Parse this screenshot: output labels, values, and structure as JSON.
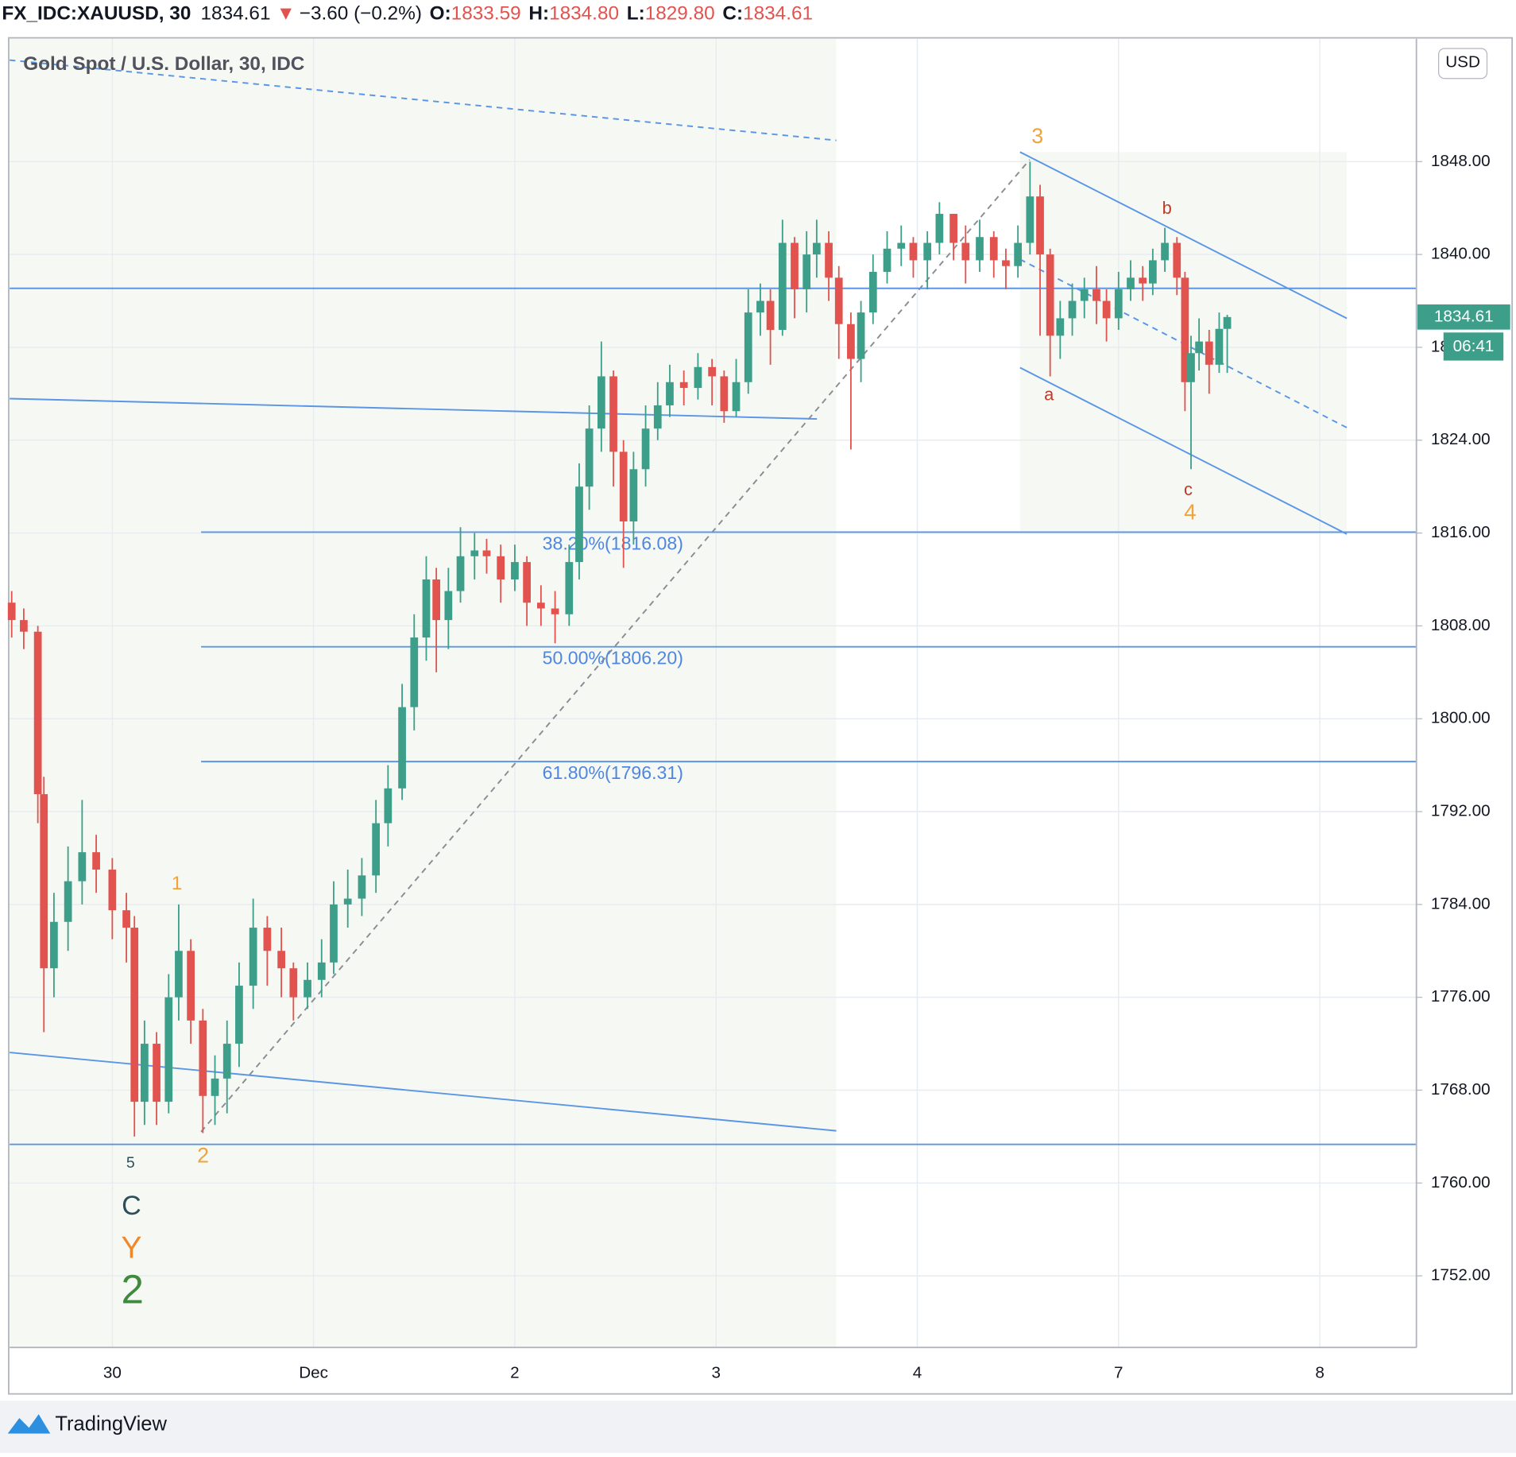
{
  "header": {
    "symbol": "FX_IDC:XAUUSD, 30",
    "last": "1834.61",
    "arrow": "▼",
    "change": "−3.60 (−0.2%)",
    "o_label": "O:",
    "open": "1833.59",
    "h_label": "H:",
    "high": "1834.80",
    "l_label": "L:",
    "low": "1829.80",
    "c_label": "C:",
    "close": "1834.61"
  },
  "chart_data": {
    "type": "candlestick",
    "title": "Gold Spot / U.S. Dollar, 30, IDC",
    "currency": "USD",
    "countdown": "06:41",
    "up_color": "#3d9f8a",
    "down_color": "#e2534f",
    "line_color": "#5b95e6",
    "grid": true,
    "xlim": [
      -0.51,
      6.48
    ],
    "ylim": [
      1745.83,
      1858.58
    ],
    "xticks": [
      {
        "value": 0,
        "label": "30"
      },
      {
        "value": 1,
        "label": "Dec"
      },
      2,
      3,
      4,
      {
        "value": 5,
        "label": "7"
      },
      {
        "value": 6,
        "label": "8"
      }
    ],
    "yticks": [
      {
        "value": 1752,
        "label": "1752.00"
      },
      {
        "value": 1760,
        "label": "1760.00"
      },
      {
        "value": 1768,
        "label": "1768.00"
      },
      {
        "value": 1776,
        "label": "1776.00"
      },
      {
        "value": 1784,
        "label": "1784.00"
      },
      {
        "value": 1792,
        "label": "1792.00"
      },
      {
        "value": 1800,
        "label": "1800.00"
      },
      {
        "value": 1808,
        "label": "1808.00"
      },
      {
        "value": 1816,
        "label": "1816.00"
      },
      {
        "value": 1824,
        "label": "1824.00"
      },
      {
        "value": 1832,
        "label": "1832.00"
      },
      {
        "value": 1840,
        "label": "1840.00"
      },
      {
        "value": 1848,
        "label": "1848.00"
      }
    ],
    "x": [
      -0.5,
      -0.44,
      -0.37,
      -0.34,
      -0.29,
      -0.22,
      -0.15,
      -0.08,
      0,
      0.07,
      0.11,
      0.16,
      0.22,
      0.28,
      0.33,
      0.39,
      0.45,
      0.51,
      0.57,
      0.63,
      0.7,
      0.77,
      0.84,
      0.9,
      0.97,
      1.04,
      1.1,
      1.17,
      1.24,
      1.31,
      1.37,
      1.44,
      1.5,
      1.56,
      1.61,
      1.67,
      1.73,
      1.8,
      1.86,
      1.93,
      2,
      2.06,
      2.13,
      2.2,
      2.27,
      2.32,
      2.37,
      2.43,
      2.49,
      2.54,
      2.59,
      2.65,
      2.71,
      2.77,
      2.84,
      2.91,
      2.98,
      3.04,
      3.1,
      3.16,
      3.22,
      3.27,
      3.33,
      3.39,
      3.45,
      3.5,
      3.56,
      3.61,
      3.67,
      3.72,
      3.78,
      3.85,
      3.92,
      3.98,
      4.05,
      4.11,
      4.18,
      4.24,
      4.31,
      4.38,
      4.44,
      4.5,
      4.56,
      4.61,
      4.66,
      4.71,
      4.77,
      4.83,
      4.89,
      4.94,
      5,
      5.06,
      5.12,
      5.17,
      5.23,
      5.29,
      5.33,
      5.36,
      5.4,
      5.45,
      5.5,
      5.54
    ],
    "open": [
      1810,
      1808.5,
      1807.5,
      1793.5,
      1778.5,
      1782.5,
      1786,
      1788.5,
      1787,
      1783.5,
      1782,
      1767,
      1772,
      1767,
      1776,
      1780,
      1774,
      1767.5,
      1769,
      1772,
      1777,
      1782,
      1780,
      1778.5,
      1776,
      1777.5,
      1779,
      1784,
      1784.5,
      1786.5,
      1791,
      1794,
      1801,
      1807,
      1812,
      1808.5,
      1811,
      1814,
      1814.5,
      1814,
      1812,
      1813.5,
      1810,
      1809.5,
      1809,
      1813.5,
      1820,
      1825,
      1829.5,
      1823,
      1817,
      1821.5,
      1825,
      1827,
      1829,
      1828.5,
      1830.3,
      1829.5,
      1826.5,
      1829,
      1835,
      1836,
      1833.5,
      1841,
      1837,
      1840,
      1841,
      1838,
      1834,
      1831,
      1835,
      1838.5,
      1840.5,
      1841,
      1839.5,
      1841,
      1843.5,
      1841,
      1839.5,
      1841.5,
      1839.5,
      1839,
      1841,
      1845,
      1840,
      1833,
      1834.5,
      1836,
      1837,
      1836,
      1834.5,
      1837,
      1838,
      1837.5,
      1839.5,
      1841,
      1838,
      1829,
      1831.5,
      1832.5,
      1830.5,
      1833.59
    ],
    "high": [
      1811,
      1809.5,
      1808,
      1795,
      1785,
      1789,
      1793,
      1790,
      1788,
      1785,
      1783,
      1774,
      1773,
      1778,
      1784,
      1781,
      1775,
      1771,
      1774,
      1779,
      1784.5,
      1783,
      1782,
      1779,
      1779,
      1781,
      1786,
      1787,
      1788,
      1793,
      1796,
      1803,
      1809,
      1814,
      1813,
      1813,
      1816.5,
      1816,
      1815.5,
      1815,
      1815,
      1814,
      1811.5,
      1811,
      1815,
      1822,
      1827,
      1832.5,
      1830,
      1824,
      1823,
      1827,
      1829,
      1830.5,
      1830,
      1831.5,
      1831,
      1830,
      1831,
      1837,
      1837.5,
      1837,
      1843,
      1841.5,
      1842,
      1843,
      1842,
      1839,
      1835,
      1836,
      1840,
      1842,
      1842.5,
      1841.5,
      1842,
      1844.5,
      1843.5,
      1842.5,
      1843,
      1842,
      1840.5,
      1842.5,
      1848,
      1846,
      1840.5,
      1836,
      1837.5,
      1838,
      1839,
      1837,
      1838.5,
      1839.5,
      1839,
      1840.5,
      1842.3,
      1841.5,
      1838.5,
      1833,
      1834.5,
      1833.5,
      1835,
      1834.8
    ],
    "low": [
      1807,
      1806,
      1791,
      1773,
      1776,
      1780,
      1784,
      1785,
      1781,
      1779,
      1764,
      1765,
      1765,
      1766,
      1774,
      1772,
      1764.3,
      1765,
      1766,
      1770,
      1775,
      1777,
      1776,
      1774,
      1775,
      1776,
      1778,
      1782,
      1783,
      1785,
      1789,
      1793,
      1799,
      1805,
      1804,
      1806,
      1810,
      1812,
      1812.5,
      1810,
      1811,
      1808,
      1808,
      1806.5,
      1808,
      1812,
      1818,
      1823,
      1820,
      1813,
      1815,
      1820,
      1824,
      1826,
      1827,
      1827.5,
      1827,
      1825.5,
      1826,
      1828,
      1833,
      1830.5,
      1833,
      1834.5,
      1835,
      1838,
      1836,
      1831,
      1823.2,
      1829,
      1834,
      1837.5,
      1839,
      1838,
      1837,
      1840,
      1839.5,
      1837.5,
      1838.5,
      1838,
      1837,
      1838,
      1840,
      1833,
      1829.5,
      1831,
      1833,
      1834.5,
      1834,
      1832.5,
      1833.5,
      1836,
      1836,
      1836.5,
      1838.5,
      1836.5,
      1826.5,
      1821.5,
      1830,
      1828,
      1829.8,
      1829.8
    ],
    "close": [
      1808.5,
      1807.5,
      1793.5,
      1778.5,
      1782.5,
      1786,
      1788.5,
      1787,
      1783.5,
      1782,
      1767,
      1772,
      1767,
      1776,
      1780,
      1774,
      1767.5,
      1769,
      1772,
      1777,
      1782,
      1780,
      1778.5,
      1776,
      1777.5,
      1779,
      1784,
      1784.5,
      1786.5,
      1791,
      1794,
      1801,
      1807,
      1812,
      1808.5,
      1811,
      1814,
      1814.5,
      1814,
      1812,
      1813.5,
      1810,
      1809.5,
      1809,
      1813.5,
      1820,
      1825,
      1829.5,
      1823,
      1817,
      1821.5,
      1825,
      1827,
      1829,
      1828.5,
      1830.3,
      1829.5,
      1826.5,
      1829,
      1835,
      1836,
      1833.5,
      1841,
      1837,
      1840,
      1841,
      1838,
      1834,
      1831,
      1835,
      1838.5,
      1840.5,
      1841,
      1839.5,
      1841,
      1843.5,
      1841,
      1839.5,
      1841.5,
      1839.5,
      1839,
      1841,
      1845,
      1840,
      1833,
      1834.5,
      1836,
      1837,
      1836,
      1834.5,
      1837,
      1838,
      1837.5,
      1839.5,
      1841,
      1838,
      1829,
      1831.5,
      1832.5,
      1830.5,
      1833.59,
      1834.61
    ],
    "h_lines": [
      1837.08,
      1763.33
    ],
    "fib_levels": [
      {
        "value": 1816.08,
        "label": "38.20%(1816.08)"
      },
      {
        "value": 1806.2,
        "label": "50.00%(1806.20)"
      },
      {
        "value": 1796.31,
        "label": "61.80%(1796.31)"
      }
    ],
    "wave_labels": [
      "3",
      "b",
      "a",
      "c",
      "4",
      "1",
      "2",
      "5",
      "C",
      "Y",
      "2"
    ]
  },
  "footer": {
    "brand": "TradingView"
  }
}
